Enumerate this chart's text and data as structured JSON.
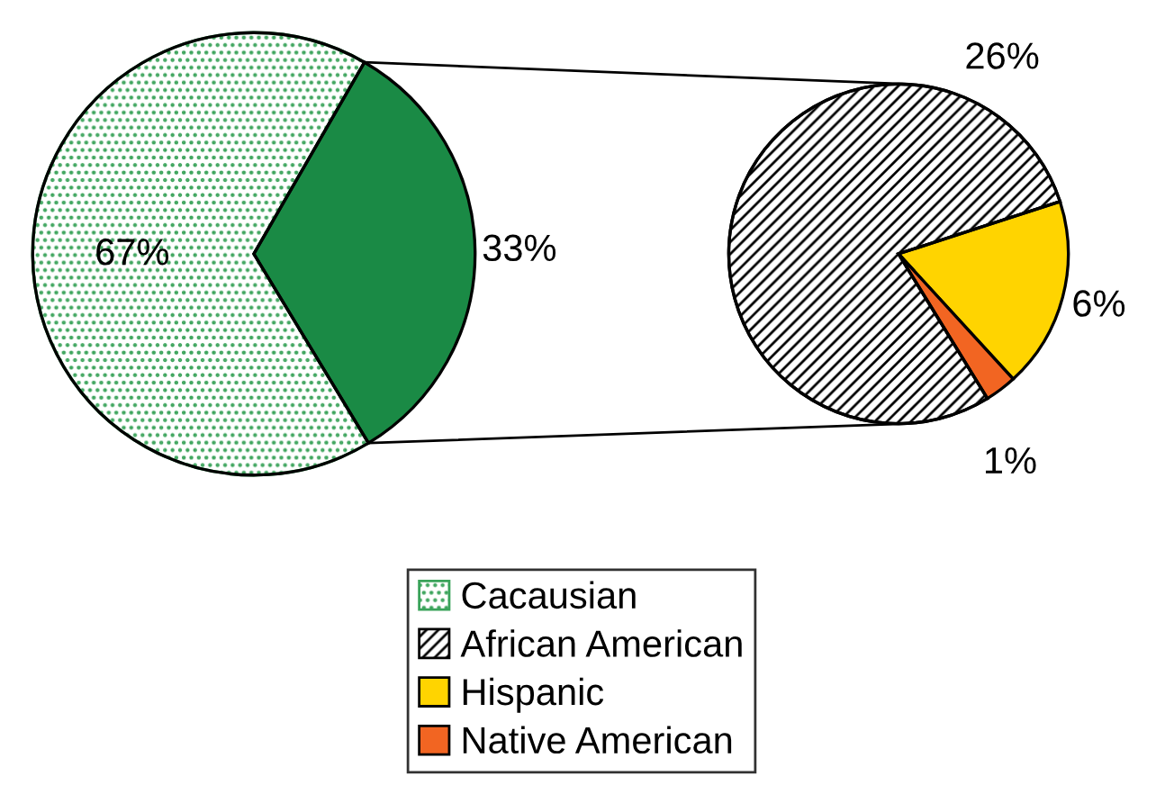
{
  "chart_data": [
    {
      "type": "pie",
      "categories": [
        "Cacausian",
        null
      ],
      "values": [
        67,
        33
      ],
      "colors": [
        "#3aa35a",
        "#1a8a45"
      ],
      "value_labels": [
        "67%",
        "33%"
      ],
      "legend": "bottom"
    },
    {
      "type": "pie",
      "categories": [
        "African American",
        "Hispanic",
        "Native American"
      ],
      "values": [
        26,
        6,
        1
      ],
      "colors": [
        "#000000",
        "#ffd400",
        "#f26522"
      ],
      "value_labels": [
        "26%",
        "6%",
        "1%"
      ],
      "legend": "bottom"
    }
  ]
}
